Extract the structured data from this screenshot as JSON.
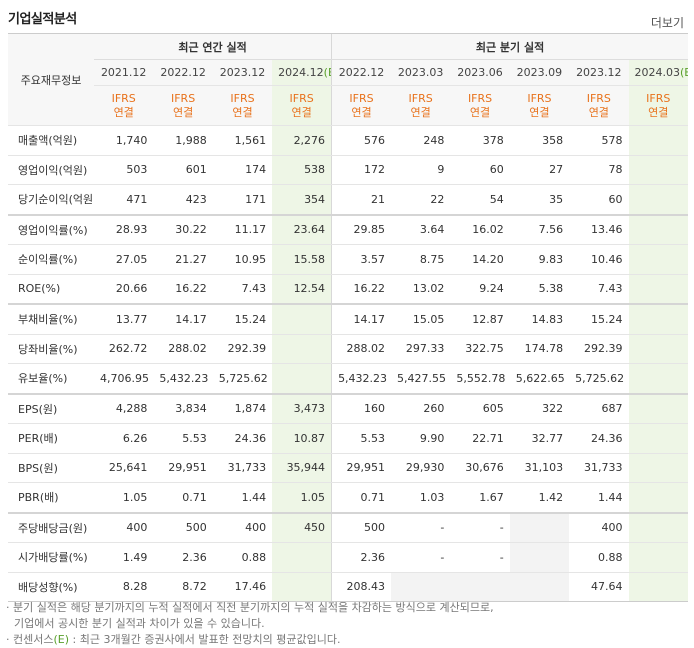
{
  "header": {
    "title": "기업실적분석",
    "more": "더보기"
  },
  "table": {
    "corner": "주요재무정보",
    "groups": [
      {
        "label": "최근 연간 실적",
        "span": 4
      },
      {
        "label": "최근 분기 실적",
        "span": 6
      }
    ],
    "columns": [
      {
        "period": "2021.12",
        "basis": "IFRS",
        "scope": "연결"
      },
      {
        "period": "2022.12",
        "basis": "IFRS",
        "scope": "연결"
      },
      {
        "period": "2023.12",
        "basis": "IFRS",
        "scope": "연결"
      },
      {
        "period": "2024.12",
        "estimate": "(E)",
        "basis": "IFRS",
        "scope": "연결"
      },
      {
        "period": "2022.12",
        "basis": "IFRS",
        "scope": "연결"
      },
      {
        "period": "2023.03",
        "basis": "IFRS",
        "scope": "연결"
      },
      {
        "period": "2023.06",
        "basis": "IFRS",
        "scope": "연결"
      },
      {
        "period": "2023.09",
        "basis": "IFRS",
        "scope": "연결"
      },
      {
        "period": "2023.12",
        "basis": "IFRS",
        "scope": "연결"
      },
      {
        "period": "2024.03",
        "estimate": "(E)",
        "basis": "IFRS",
        "scope": "연결"
      }
    ],
    "rows": [
      {
        "label": "매출액(억원)",
        "cells": [
          "1,740",
          "1,988",
          "1,561",
          "2,276",
          "576",
          "248",
          "378",
          "358",
          "578",
          null
        ]
      },
      {
        "label": "영업이익(억원)",
        "cells": [
          "503",
          "601",
          "174",
          "538",
          "172",
          "9",
          "60",
          "27",
          "78",
          null
        ]
      },
      {
        "label": "당기순이익(억원)",
        "cells": [
          "471",
          "423",
          "171",
          "354",
          "21",
          "22",
          "54",
          "35",
          "60",
          null
        ]
      },
      {
        "label": "영업이익률(%)",
        "cells": [
          "28.93",
          "30.22",
          "11.17",
          "23.64",
          "29.85",
          "3.64",
          "16.02",
          "7.56",
          "13.46",
          null
        ]
      },
      {
        "label": "순이익률(%)",
        "cells": [
          "27.05",
          "21.27",
          "10.95",
          "15.58",
          "3.57",
          "8.75",
          "14.20",
          "9.83",
          "10.46",
          null
        ]
      },
      {
        "label": "ROE(%)",
        "cells": [
          "20.66",
          "16.22",
          "7.43",
          "12.54",
          "16.22",
          "13.02",
          "9.24",
          "5.38",
          "7.43",
          null
        ]
      },
      {
        "label": "부채비율(%)",
        "cells": [
          "13.77",
          "14.17",
          "15.24",
          null,
          "14.17",
          "15.05",
          "12.87",
          "14.83",
          "15.24",
          null
        ]
      },
      {
        "label": "당좌비율(%)",
        "cells": [
          "262.72",
          "288.02",
          "292.39",
          null,
          "288.02",
          "297.33",
          "322.75",
          "174.78",
          "292.39",
          null
        ]
      },
      {
        "label": "유보율(%)",
        "cells": [
          "4,706.95",
          "5,432.23",
          "5,725.62",
          null,
          "5,432.23",
          "5,427.55",
          "5,552.78",
          "5,622.65",
          "5,725.62",
          null
        ]
      },
      {
        "label": "EPS(원)",
        "cells": [
          "4,288",
          "3,834",
          "1,874",
          "3,473",
          "160",
          "260",
          "605",
          "322",
          "687",
          null
        ]
      },
      {
        "label": "PER(배)",
        "cells": [
          "6.26",
          "5.53",
          "24.36",
          "10.87",
          "5.53",
          "9.90",
          "22.71",
          "32.77",
          "24.36",
          null
        ]
      },
      {
        "label": "BPS(원)",
        "cells": [
          "25,641",
          "29,951",
          "31,733",
          "35,944",
          "29,951",
          "29,930",
          "30,676",
          "31,103",
          "31,733",
          null
        ]
      },
      {
        "label": "PBR(배)",
        "cells": [
          "1.05",
          "0.71",
          "1.44",
          "1.05",
          "0.71",
          "1.03",
          "1.67",
          "1.42",
          "1.44",
          null
        ]
      },
      {
        "label": "주당배당금(원)",
        "cells": [
          "400",
          "500",
          "400",
          "450",
          "500",
          "-",
          "-",
          null,
          "400",
          null
        ]
      },
      {
        "label": "시가배당률(%)",
        "cells": [
          "1.49",
          "2.36",
          "0.88",
          null,
          "2.36",
          "-",
          "-",
          null,
          "0.88",
          null
        ]
      },
      {
        "label": "배당성향(%)",
        "cells": [
          "8.28",
          "8.72",
          "17.46",
          null,
          "208.43",
          null,
          null,
          null,
          "47.64",
          null
        ]
      }
    ],
    "group_breaks": [
      2,
      5,
      8,
      12
    ]
  },
  "notes": [
    {
      "text": "분기 실적은 해당 분기까지의 누적 실적에서 직전 분기까지의 누적 실적을 차감하는 방식으로 계산되므로,",
      "text2": "기업에서 공시한 분기 실적과 차이가 있을 수 있습니다."
    },
    {
      "text": "컨센서스",
      "mark": "(E)",
      "text2": " : 최근 3개월간 증권사에서 발표한 전망치의 평균값입니다."
    }
  ]
}
